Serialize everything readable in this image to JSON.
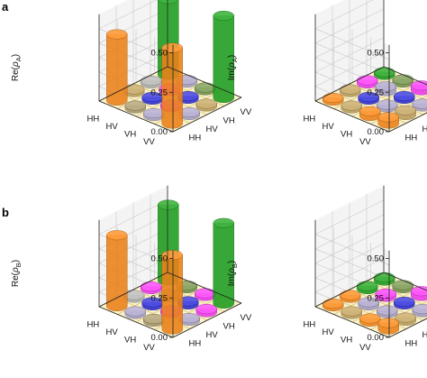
{
  "figure": {
    "panels": [
      {
        "id": "a-re",
        "letter": "a",
        "ylabel": "Re(ρA)",
        "ylabel_base": "Re(",
        "ylabel_greek": "ρ",
        "ylabel_sub": "A",
        "ylabel_close": ")"
      },
      {
        "id": "a-im",
        "letter": "",
        "ylabel": "Im(ρA)",
        "ylabel_base": "Im(",
        "ylabel_greek": "ρ",
        "ylabel_sub": "A",
        "ylabel_close": ")"
      },
      {
        "id": "b-re",
        "letter": "b",
        "ylabel": "Re(ρB)",
        "ylabel_base": "Re(",
        "ylabel_greek": "ρ",
        "ylabel_sub": "B",
        "ylabel_close": ")"
      },
      {
        "id": "b-im",
        "letter": "",
        "ylabel": "Im(ρB)",
        "ylabel_base": "Im(",
        "ylabel_greek": "ρ",
        "ylabel_sub": "B",
        "ylabel_close": ")"
      }
    ]
  },
  "chart_data": [
    {
      "type": "bar3d",
      "panel": "a",
      "title": "",
      "ylabel": "Re(ρA)",
      "row_labels": [
        "HH",
        "HV",
        "VH",
        "VV"
      ],
      "col_labels": [
        "HH",
        "HV",
        "VH",
        "VV"
      ],
      "zlim": [
        0,
        0.55
      ],
      "zticks": [
        "0.00",
        "0.25",
        "0.50"
      ],
      "zticks_values": [
        0,
        0.25,
        0.5
      ],
      "values": [
        [
          0.42,
          0.0,
          0.0,
          0.48
        ],
        [
          0.0,
          0.0,
          0.0,
          0.0
        ],
        [
          0.0,
          0.0,
          0.0,
          0.0
        ],
        [
          0.48,
          0.0,
          0.0,
          0.52
        ]
      ],
      "colors": [
        [
          "#ff8c1a",
          "#c8a862",
          "#b9b9b9",
          "#1ea81e"
        ],
        [
          "#b0a070",
          "#3030e0",
          "#ff3cff",
          "#b0a8d0"
        ],
        [
          "#b0a8d0",
          "#ff3cff",
          "#3030e0",
          "#7a9a50"
        ],
        [
          "#ff8c1a",
          "#b0a8d0",
          "#c8a862",
          "#1ea81e"
        ]
      ]
    },
    {
      "type": "bar3d",
      "panel": "a",
      "title": "",
      "ylabel": "Im(ρA)",
      "row_labels": [
        "HH",
        "HV",
        "VH",
        "VV"
      ],
      "col_labels": [
        "HH",
        "HV",
        "VH",
        "VV"
      ],
      "zlim": [
        0,
        0.55
      ],
      "zticks": [
        "0.00",
        "0.25",
        "0.50"
      ],
      "zticks_values": [
        0,
        0.25,
        0.5
      ],
      "values": [
        [
          0.0,
          0.0,
          0.02,
          0.0
        ],
        [
          0.0,
          0.0,
          0.03,
          0.02
        ],
        [
          0.03,
          0.0,
          0.0,
          0.03
        ],
        [
          0.04,
          0.03,
          0.0,
          0.0
        ]
      ],
      "colors": [
        [
          "#ff8c1a",
          "#c8a862",
          "#ff3cff",
          "#1ea81e"
        ],
        [
          "#c8a862",
          "#3030e0",
          "#b0a8d0",
          "#7a9a50"
        ],
        [
          "#ff8c1a",
          "#b0a8d0",
          "#3030e0",
          "#ff3cff"
        ],
        [
          "#ff8c1a",
          "#c8a862",
          "#b0a8d0",
          "#b0a070"
        ]
      ]
    },
    {
      "type": "bar3d",
      "panel": "b",
      "title": "",
      "ylabel": "Re(ρB)",
      "row_labels": [
        "HH",
        "HV",
        "VH",
        "VV"
      ],
      "col_labels": [
        "HH",
        "HV",
        "VH",
        "VV"
      ],
      "zlim": [
        0,
        0.55
      ],
      "zticks": [
        "0.00",
        "0.25",
        "0.50"
      ],
      "zticks_values": [
        0,
        0.25,
        0.5
      ],
      "values": [
        [
          0.45,
          0.0,
          0.0,
          0.48
        ],
        [
          0.0,
          0.02,
          0.0,
          0.0
        ],
        [
          0.0,
          0.0,
          0.02,
          0.0
        ],
        [
          0.47,
          0.0,
          0.02,
          0.51
        ]
      ],
      "colors": [
        [
          "#ff8c1a",
          "#b9b9b9",
          "#ff3cff",
          "#1ea81e"
        ],
        [
          "#b0a8d0",
          "#3030e0",
          "#b0a070",
          "#7a9a50"
        ],
        [
          "#b0a070",
          "#ff3cff",
          "#3030e0",
          "#ff3cff"
        ],
        [
          "#ff8c1a",
          "#b0a8d0",
          "#ff3cff",
          "#1ea81e"
        ]
      ]
    },
    {
      "type": "bar3d",
      "panel": "b",
      "title": "",
      "ylabel": "Im(ρB)",
      "row_labels": [
        "HH",
        "HV",
        "VH",
        "VV"
      ],
      "col_labels": [
        "HH",
        "HV",
        "VH",
        "VV"
      ],
      "zlim": [
        0,
        0.55
      ],
      "zticks": [
        "0.00",
        "0.25",
        "0.50"
      ],
      "zticks_values": [
        0,
        0.25,
        0.5
      ],
      "values": [
        [
          0.0,
          0.0,
          0.02,
          0.02
        ],
        [
          0.0,
          0.02,
          0.02,
          0.02
        ],
        [
          0.02,
          0.0,
          0.0,
          0.03
        ],
        [
          0.04,
          0.02,
          0.02,
          0.0
        ]
      ],
      "colors": [
        [
          "#ff8c1a",
          "#ff8c1a",
          "#1ea81e",
          "#1ea81e"
        ],
        [
          "#c8a862",
          "#b0a8d0",
          "#ff3cff",
          "#7a9a50"
        ],
        [
          "#ff8c1a",
          "#b0a8d0",
          "#3030e0",
          "#ff3cff"
        ],
        [
          "#ff8c1a",
          "#c8a862",
          "#b0a8d0",
          "#b0a070"
        ]
      ]
    }
  ]
}
